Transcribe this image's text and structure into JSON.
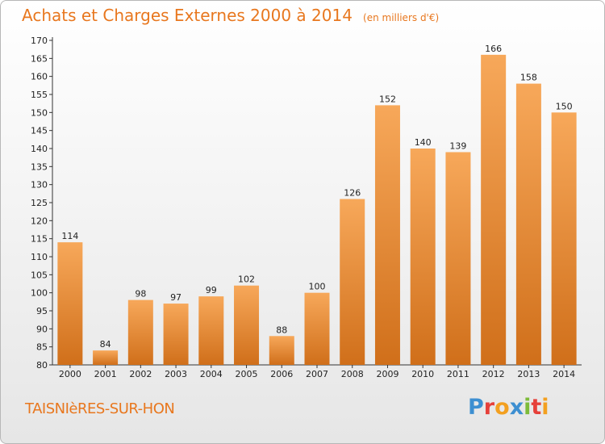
{
  "title": "Achats et Charges Externes 2000 à 2014",
  "unit": "(en milliers d'€)",
  "commune": "TAISNIèRES-SUR-HON",
  "logo": {
    "letters": [
      "P",
      "r",
      "o",
      "x",
      "i",
      "t",
      "i"
    ],
    "colors": [
      "#3d8fd1",
      "#e6403a",
      "#f3a020",
      "#3d8fd1",
      "#7dbb3a",
      "#e6403a",
      "#f3a020"
    ]
  },
  "colors": {
    "title": "#e8771e",
    "bar_light": "#f7a85a",
    "bar_dark": "#d06f1a"
  },
  "chart_data": {
    "type": "bar",
    "title": "Achats et Charges Externes 2000 à 2014",
    "categories": [
      "2000",
      "2001",
      "2002",
      "2003",
      "2004",
      "2005",
      "2006",
      "2007",
      "2008",
      "2009",
      "2010",
      "2011",
      "2012",
      "2013",
      "2014"
    ],
    "values": [
      114,
      84,
      98,
      97,
      99,
      102,
      88,
      100,
      126,
      152,
      140,
      139,
      166,
      158,
      150
    ],
    "ylim": [
      80,
      170
    ],
    "yticks": [
      80,
      85,
      90,
      95,
      100,
      105,
      110,
      115,
      120,
      125,
      130,
      135,
      140,
      145,
      150,
      155,
      160,
      165,
      170
    ],
    "grid": false,
    "xlabel": "",
    "ylabel": ""
  }
}
